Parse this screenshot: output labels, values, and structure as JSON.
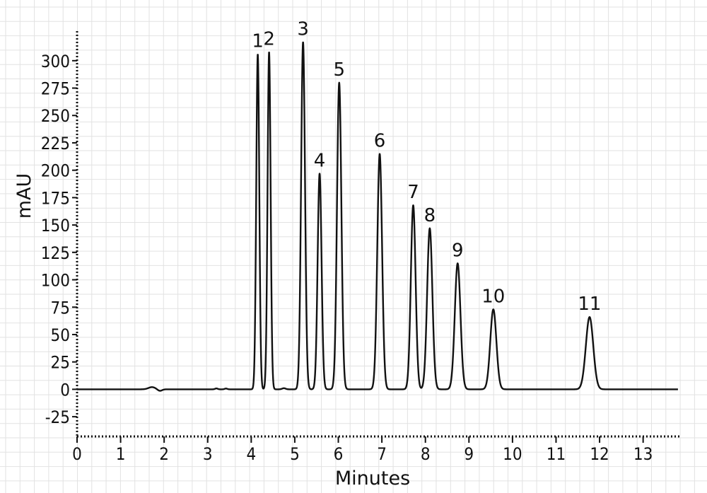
{
  "chart_data": {
    "type": "line",
    "xlabel": "Minutes",
    "ylabel": "mAU",
    "xlim": [
      0,
      13.85
    ],
    "ylim": [
      -43,
      327
    ],
    "x_ticks": [
      0,
      1,
      2,
      3,
      4,
      5,
      6,
      7,
      8,
      9,
      10,
      11,
      12,
      13
    ],
    "y_ticks": [
      -25,
      0,
      25,
      50,
      75,
      100,
      125,
      150,
      175,
      200,
      225,
      250,
      275,
      300
    ],
    "grid": true,
    "baseline": 0,
    "peaks": [
      {
        "label": "1",
        "time": 4.15,
        "height": 306,
        "width": 0.035
      },
      {
        "label": "2",
        "time": 4.41,
        "height": 308,
        "width": 0.035
      },
      {
        "label": "3",
        "time": 5.19,
        "height": 317,
        "width": 0.045
      },
      {
        "label": "4",
        "time": 5.57,
        "height": 197,
        "width": 0.045
      },
      {
        "label": "5",
        "time": 6.02,
        "height": 280,
        "width": 0.05
      },
      {
        "label": "6",
        "time": 6.95,
        "height": 215,
        "width": 0.055
      },
      {
        "label": "7",
        "time": 7.72,
        "height": 168,
        "width": 0.055
      },
      {
        "label": "8",
        "time": 8.1,
        "height": 147,
        "width": 0.06
      },
      {
        "label": "9",
        "time": 8.74,
        "height": 115,
        "width": 0.065
      },
      {
        "label": "10",
        "time": 9.56,
        "height": 73,
        "width": 0.07
      },
      {
        "label": "11",
        "time": 11.77,
        "height": 66,
        "width": 0.085
      }
    ],
    "minor_features": [
      {
        "time": 1.72,
        "height": 2,
        "width": 0.08
      },
      {
        "time": 1.9,
        "height": -1.5,
        "width": 0.05
      },
      {
        "time": 3.2,
        "height": 0.8,
        "width": 0.03
      },
      {
        "time": 3.42,
        "height": 0.7,
        "width": 0.03
      },
      {
        "time": 4.75,
        "height": 1,
        "width": 0.04
      }
    ]
  }
}
